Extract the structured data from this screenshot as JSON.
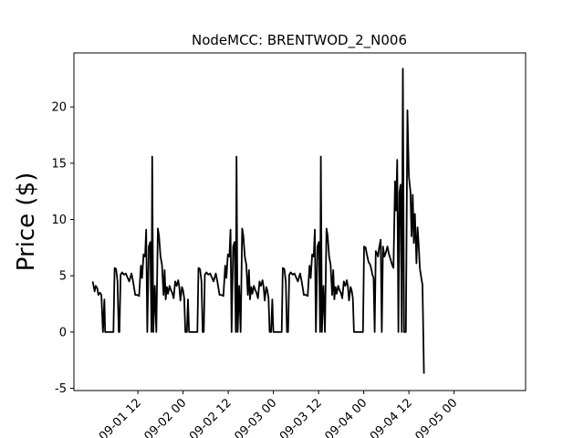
{
  "chart_data": {
    "type": "line",
    "title": "NodeMCC: BRENTWOD_2_N006",
    "xlabel": "",
    "ylabel": "Price ($)",
    "x_axis": "datetime",
    "xlim": [
      "2019-08-31 19:00",
      "2019-05-05 15:00"
    ],
    "xlim_hours": [
      -5,
      115
    ],
    "ylim": [
      -5.2,
      24.8
    ],
    "yticks": [
      -5,
      0,
      5,
      10,
      15,
      20
    ],
    "xticks": [
      {
        "hours": 12,
        "label": "09-01 12"
      },
      {
        "hours": 24,
        "label": "09-02 00"
      },
      {
        "hours": 36,
        "label": "09-02 12"
      },
      {
        "hours": 48,
        "label": "09-03 00"
      },
      {
        "hours": 60,
        "label": "09-03 12"
      },
      {
        "hours": 72,
        "label": "09-04 00"
      },
      {
        "hours": 84,
        "label": "09-04 12"
      },
      {
        "hours": 96,
        "label": "09-05 00"
      }
    ],
    "grid": false,
    "line_color": "#000000",
    "series": [
      {
        "name": "",
        "points": [
          [
            0,
            4.5
          ],
          [
            0.5,
            3.6
          ],
          [
            0.8,
            4.1
          ],
          [
            1.2,
            3.9
          ],
          [
            1.5,
            3.3
          ],
          [
            1.9,
            3.5
          ],
          [
            2.3,
            3.3
          ],
          [
            2.7,
            0
          ],
          [
            3.1,
            2.9
          ],
          [
            3.3,
            0
          ],
          [
            5.5,
            0
          ],
          [
            5.8,
            5.7
          ],
          [
            6.2,
            5.6
          ],
          [
            6.6,
            4.5
          ],
          [
            6.9,
            0
          ],
          [
            7.1,
            0
          ],
          [
            7.4,
            5.1
          ],
          [
            7.8,
            5.3
          ],
          [
            8.3,
            5.1
          ],
          [
            8.8,
            5.2
          ],
          [
            9.3,
            4.8
          ],
          [
            9.7,
            4.5
          ],
          [
            10.3,
            5.2
          ],
          [
            10.7,
            4.5
          ],
          [
            11.3,
            3.3
          ],
          [
            11.8,
            3.3
          ],
          [
            12.3,
            3.2
          ],
          [
            12.8,
            5.9
          ],
          [
            13.1,
            4.8
          ],
          [
            13.5,
            6.9
          ],
          [
            13.9,
            6.7
          ],
          [
            14.2,
            9.1
          ],
          [
            14.5,
            0
          ],
          [
            14.9,
            7.6
          ],
          [
            15.3,
            8.0
          ],
          [
            15.6,
            0
          ],
          [
            15.8,
            15.6
          ],
          [
            16.1,
            0
          ],
          [
            16.5,
            4.1
          ],
          [
            16.9,
            0
          ],
          [
            17.3,
            9.2
          ],
          [
            17.6,
            8.6
          ],
          [
            18.0,
            6.7
          ],
          [
            18.4,
            6.0
          ],
          [
            18.8,
            3.3
          ],
          [
            19.1,
            5.5
          ],
          [
            19.4,
            2.9
          ],
          [
            19.7,
            4.0
          ],
          [
            20.0,
            3.4
          ],
          [
            20.4,
            4.1
          ],
          [
            20.8,
            3.7
          ],
          [
            21.1,
            3.5
          ],
          [
            21.5,
            3.0
          ],
          [
            21.9,
            4.5
          ],
          [
            22.3,
            4.1
          ],
          [
            22.7,
            4.6
          ],
          [
            23.0,
            4.0
          ],
          [
            23.3,
            2.8
          ],
          [
            23.7,
            4.0
          ],
          [
            24.0,
            3.7
          ],
          [
            24.3,
            3.0
          ],
          [
            24.6,
            0
          ],
          [
            25.0,
            0
          ],
          [
            25.3,
            2.9
          ],
          [
            25.6,
            0
          ],
          [
            27.8,
            0
          ],
          [
            28.1,
            5.7
          ],
          [
            28.5,
            5.6
          ],
          [
            28.9,
            4.5
          ],
          [
            29.2,
            0
          ],
          [
            29.5,
            0
          ],
          [
            29.8,
            5.1
          ],
          [
            30.2,
            5.3
          ],
          [
            30.7,
            5.1
          ],
          [
            31.2,
            5.2
          ],
          [
            31.7,
            4.8
          ],
          [
            32.1,
            4.5
          ],
          [
            32.7,
            5.2
          ],
          [
            33.1,
            4.5
          ],
          [
            33.7,
            3.3
          ],
          [
            34.2,
            3.3
          ],
          [
            34.7,
            3.2
          ],
          [
            35.2,
            5.9
          ],
          [
            35.5,
            4.8
          ],
          [
            35.9,
            6.9
          ],
          [
            36.3,
            6.7
          ],
          [
            36.6,
            9.1
          ],
          [
            36.9,
            0
          ],
          [
            37.3,
            7.6
          ],
          [
            37.7,
            8.0
          ],
          [
            38.0,
            0
          ],
          [
            38.2,
            15.6
          ],
          [
            38.5,
            0
          ],
          [
            38.9,
            4.1
          ],
          [
            39.3,
            0
          ],
          [
            39.7,
            9.2
          ],
          [
            40.0,
            8.6
          ],
          [
            40.4,
            6.7
          ],
          [
            40.8,
            6.0
          ],
          [
            41.2,
            3.3
          ],
          [
            41.5,
            5.5
          ],
          [
            41.8,
            2.9
          ],
          [
            42.1,
            4.0
          ],
          [
            42.4,
            3.4
          ],
          [
            42.8,
            4.1
          ],
          [
            43.2,
            3.7
          ],
          [
            43.5,
            3.5
          ],
          [
            43.9,
            3.0
          ],
          [
            44.3,
            4.5
          ],
          [
            44.7,
            4.1
          ],
          [
            45.1,
            4.6
          ],
          [
            45.4,
            4.0
          ],
          [
            45.7,
            2.8
          ],
          [
            46.1,
            4.0
          ],
          [
            46.4,
            3.7
          ],
          [
            46.7,
            3.0
          ],
          [
            47.0,
            0
          ],
          [
            47.4,
            0
          ],
          [
            47.7,
            2.9
          ],
          [
            48.0,
            0
          ],
          [
            50.2,
            0
          ],
          [
            50.5,
            5.7
          ],
          [
            50.9,
            5.6
          ],
          [
            51.3,
            4.5
          ],
          [
            51.6,
            0
          ],
          [
            51.9,
            0
          ],
          [
            52.2,
            5.1
          ],
          [
            52.6,
            5.3
          ],
          [
            53.1,
            5.1
          ],
          [
            53.6,
            5.2
          ],
          [
            54.1,
            4.8
          ],
          [
            54.5,
            4.5
          ],
          [
            55.1,
            5.2
          ],
          [
            55.5,
            4.5
          ],
          [
            56.1,
            3.3
          ],
          [
            56.6,
            3.3
          ],
          [
            57.1,
            3.2
          ],
          [
            57.6,
            5.9
          ],
          [
            57.9,
            4.8
          ],
          [
            58.3,
            6.9
          ],
          [
            58.7,
            6.7
          ],
          [
            59.0,
            9.1
          ],
          [
            59.3,
            0
          ],
          [
            59.7,
            7.6
          ],
          [
            60.1,
            8.0
          ],
          [
            60.4,
            0
          ],
          [
            60.6,
            15.6
          ],
          [
            60.9,
            0
          ],
          [
            61.3,
            4.1
          ],
          [
            61.7,
            0
          ],
          [
            62.1,
            9.2
          ],
          [
            62.4,
            8.6
          ],
          [
            62.8,
            6.7
          ],
          [
            63.2,
            6.0
          ],
          [
            63.6,
            3.3
          ],
          [
            63.9,
            5.5
          ],
          [
            64.2,
            2.9
          ],
          [
            64.5,
            4.0
          ],
          [
            64.8,
            3.4
          ],
          [
            65.2,
            4.1
          ],
          [
            65.6,
            3.7
          ],
          [
            65.9,
            3.5
          ],
          [
            66.3,
            3.0
          ],
          [
            66.7,
            4.5
          ],
          [
            67.1,
            4.1
          ],
          [
            67.5,
            4.6
          ],
          [
            67.8,
            4.0
          ],
          [
            68.1,
            2.8
          ],
          [
            68.5,
            4.0
          ],
          [
            68.8,
            3.7
          ],
          [
            69.1,
            3.0
          ],
          [
            69.4,
            0
          ],
          [
            71.8,
            0
          ],
          [
            72.1,
            7.6
          ],
          [
            72.5,
            7.5
          ],
          [
            72.9,
            6.8
          ],
          [
            73.3,
            6.2
          ],
          [
            73.7,
            6.0
          ],
          [
            74.0,
            5.6
          ],
          [
            74.3,
            5.1
          ],
          [
            74.6,
            4.8
          ],
          [
            74.9,
            0
          ],
          [
            75.2,
            7.2
          ],
          [
            75.5,
            7.0
          ],
          [
            75.8,
            6.7
          ],
          [
            76.1,
            7.5
          ],
          [
            76.5,
            8.2
          ],
          [
            76.8,
            0
          ],
          [
            77.1,
            7.6
          ],
          [
            77.5,
            6.7
          ],
          [
            77.9,
            7.1
          ],
          [
            78.3,
            7.6
          ],
          [
            78.7,
            6.9
          ],
          [
            79.1,
            6.5
          ],
          [
            79.5,
            6.0
          ],
          [
            79.9,
            5.7
          ],
          [
            80.3,
            13.4
          ],
          [
            80.6,
            10.8
          ],
          [
            80.9,
            15.3
          ],
          [
            81.2,
            0
          ],
          [
            81.5,
            12.4
          ],
          [
            81.8,
            13.1
          ],
          [
            82.1,
            0
          ],
          [
            82.4,
            23.4
          ],
          [
            82.7,
            0
          ],
          [
            83.2,
            0
          ],
          [
            83.6,
            19.7
          ],
          [
            84.0,
            13.8
          ],
          [
            84.4,
            12.5
          ],
          [
            84.7,
            8.5
          ],
          [
            85.0,
            12.2
          ],
          [
            85.3,
            7.9
          ],
          [
            85.6,
            10.5
          ],
          [
            86.0,
            6.1
          ],
          [
            86.3,
            9.3
          ],
          [
            86.6,
            7.8
          ],
          [
            86.9,
            5.7
          ],
          [
            87.3,
            4.8
          ],
          [
            87.6,
            4.2
          ],
          [
            88.0,
            -3.7
          ]
        ]
      }
    ]
  }
}
